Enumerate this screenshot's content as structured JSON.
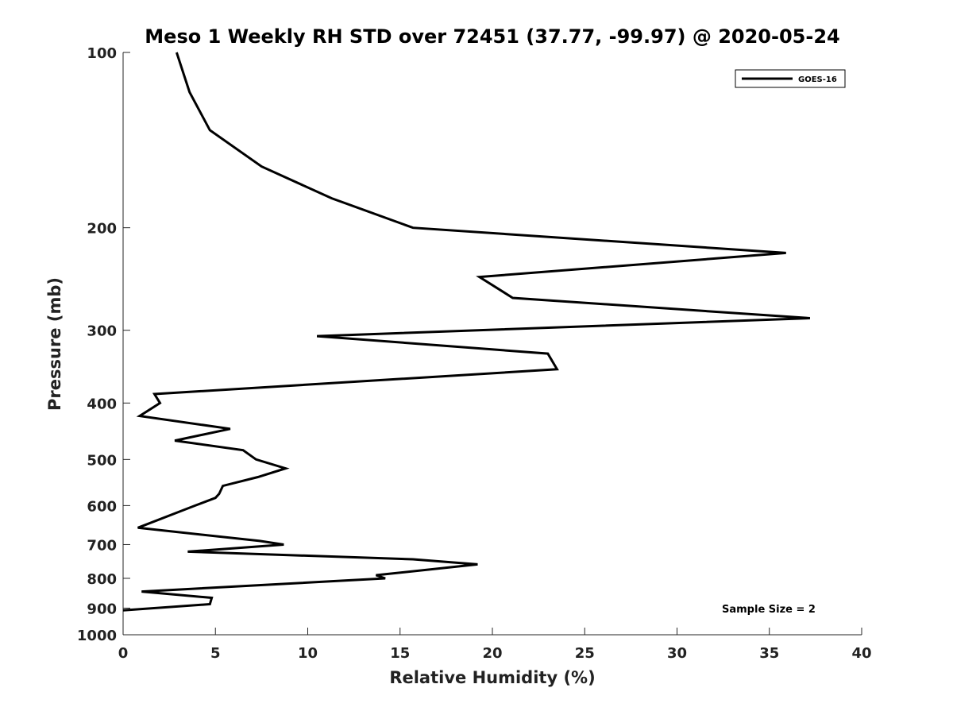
{
  "chart_data": {
    "type": "line",
    "title": "Meso 1 Weekly RH STD over 72451 (37.77, -99.97) @ 2020-05-24",
    "xlabel": "Relative Humidity (%)",
    "ylabel": "Pressure (mb)",
    "xlim": [
      0,
      40
    ],
    "ylim": [
      100,
      1000
    ],
    "y_scale": "log",
    "y_direction": "reversed",
    "xticks": [
      0,
      5,
      10,
      15,
      20,
      25,
      30,
      35,
      40
    ],
    "xtick_labels": [
      "0",
      "5",
      "10",
      "15",
      "20",
      "25",
      "30",
      "35",
      "40"
    ],
    "yticks": [
      100,
      200,
      300,
      400,
      500,
      600,
      700,
      800,
      900,
      1000
    ],
    "ytick_labels": [
      "100",
      "200",
      "300",
      "400",
      "500",
      "600",
      "700",
      "800",
      "900",
      "1000"
    ],
    "grid": false,
    "legend_position": "top-right",
    "annotation": "Sample Size = 2",
    "series": [
      {
        "name": "GOES-16",
        "color": "#000000",
        "points": [
          {
            "x": 2.9,
            "p": 100
          },
          {
            "x": 3.6,
            "p": 117
          },
          {
            "x": 4.7,
            "p": 136
          },
          {
            "x": 7.5,
            "p": 157
          },
          {
            "x": 11.3,
            "p": 178
          },
          {
            "x": 15.7,
            "p": 200
          },
          {
            "x": 35.9,
            "p": 221
          },
          {
            "x": 19.3,
            "p": 243
          },
          {
            "x": 21.1,
            "p": 264
          },
          {
            "x": 37.2,
            "p": 286
          },
          {
            "x": 10.5,
            "p": 307
          },
          {
            "x": 23.0,
            "p": 329
          },
          {
            "x": 23.5,
            "p": 350
          },
          {
            "x": 1.7,
            "p": 386
          },
          {
            "x": 2.0,
            "p": 400
          },
          {
            "x": 0.9,
            "p": 421
          },
          {
            "x": 5.8,
            "p": 443
          },
          {
            "x": 2.8,
            "p": 464
          },
          {
            "x": 6.5,
            "p": 482
          },
          {
            "x": 7.2,
            "p": 500
          },
          {
            "x": 8.8,
            "p": 518
          },
          {
            "x": 7.3,
            "p": 536
          },
          {
            "x": 5.4,
            "p": 555
          },
          {
            "x": 5.2,
            "p": 573
          },
          {
            "x": 5.0,
            "p": 582
          },
          {
            "x": 3.9,
            "p": 600
          },
          {
            "x": 0.8,
            "p": 655
          },
          {
            "x": 7.4,
            "p": 690
          },
          {
            "x": 8.7,
            "p": 700
          },
          {
            "x": 3.5,
            "p": 720
          },
          {
            "x": 15.7,
            "p": 742
          },
          {
            "x": 19.2,
            "p": 757
          },
          {
            "x": 13.7,
            "p": 790
          },
          {
            "x": 14.2,
            "p": 800
          },
          {
            "x": 1.0,
            "p": 843
          },
          {
            "x": 4.8,
            "p": 864
          },
          {
            "x": 4.7,
            "p": 886
          },
          {
            "x": 0.0,
            "p": 908
          }
        ]
      }
    ]
  }
}
